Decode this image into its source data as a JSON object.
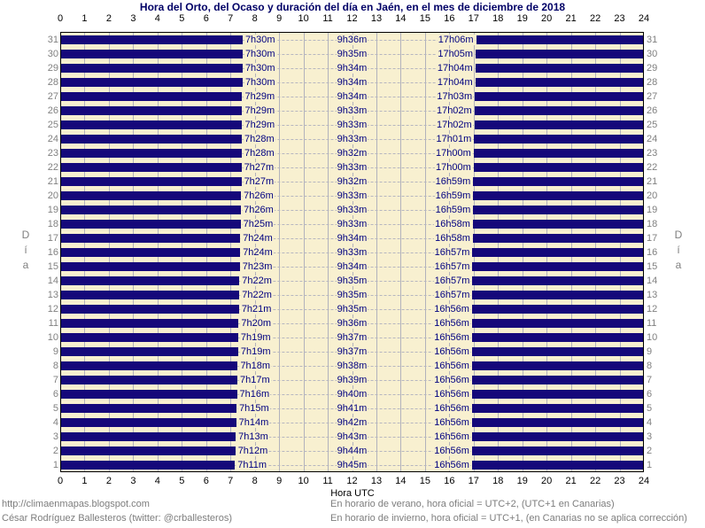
{
  "title": "Hora del Orto, del Ocaso y duración del día en Jaén, en el mes de diciembre de 2018",
  "chart_data": {
    "type": "bar",
    "title": "Hora del Orto, del Ocaso y duración del día en Jaén, en el mes de diciembre de 2018",
    "xlabel": "Hora UTC",
    "ylabel": "Día",
    "x_min": 0,
    "x_max": 24,
    "x_tick_step": 1,
    "grid": "vertical solid per hour, horizontal dashed per day",
    "bar_meaning": "dark bars = night (00:00 to sunrise, sunset to 24:00); labels per day: sunrise (orto), day length (duración), sunset (ocaso)",
    "days": [
      {
        "day": 31,
        "orto": "7h30m",
        "duracion": "9h36m",
        "ocaso": "17h06m"
      },
      {
        "day": 30,
        "orto": "7h30m",
        "duracion": "9h35m",
        "ocaso": "17h05m"
      },
      {
        "day": 29,
        "orto": "7h30m",
        "duracion": "9h34m",
        "ocaso": "17h04m"
      },
      {
        "day": 28,
        "orto": "7h30m",
        "duracion": "9h34m",
        "ocaso": "17h04m"
      },
      {
        "day": 27,
        "orto": "7h29m",
        "duracion": "9h34m",
        "ocaso": "17h03m"
      },
      {
        "day": 26,
        "orto": "7h29m",
        "duracion": "9h33m",
        "ocaso": "17h02m"
      },
      {
        "day": 25,
        "orto": "7h29m",
        "duracion": "9h33m",
        "ocaso": "17h02m"
      },
      {
        "day": 24,
        "orto": "7h28m",
        "duracion": "9h33m",
        "ocaso": "17h01m"
      },
      {
        "day": 23,
        "orto": "7h28m",
        "duracion": "9h32m",
        "ocaso": "17h00m"
      },
      {
        "day": 22,
        "orto": "7h27m",
        "duracion": "9h33m",
        "ocaso": "17h00m"
      },
      {
        "day": 21,
        "orto": "7h27m",
        "duracion": "9h32m",
        "ocaso": "16h59m"
      },
      {
        "day": 20,
        "orto": "7h26m",
        "duracion": "9h33m",
        "ocaso": "16h59m"
      },
      {
        "day": 19,
        "orto": "7h26m",
        "duracion": "9h33m",
        "ocaso": "16h59m"
      },
      {
        "day": 18,
        "orto": "7h25m",
        "duracion": "9h33m",
        "ocaso": "16h58m"
      },
      {
        "day": 17,
        "orto": "7h24m",
        "duracion": "9h34m",
        "ocaso": "16h58m"
      },
      {
        "day": 16,
        "orto": "7h24m",
        "duracion": "9h33m",
        "ocaso": "16h57m"
      },
      {
        "day": 15,
        "orto": "7h23m",
        "duracion": "9h34m",
        "ocaso": "16h57m"
      },
      {
        "day": 14,
        "orto": "7h22m",
        "duracion": "9h35m",
        "ocaso": "16h57m"
      },
      {
        "day": 13,
        "orto": "7h22m",
        "duracion": "9h35m",
        "ocaso": "16h57m"
      },
      {
        "day": 12,
        "orto": "7h21m",
        "duracion": "9h35m",
        "ocaso": "16h56m"
      },
      {
        "day": 11,
        "orto": "7h20m",
        "duracion": "9h36m",
        "ocaso": "16h56m"
      },
      {
        "day": 10,
        "orto": "7h19m",
        "duracion": "9h37m",
        "ocaso": "16h56m"
      },
      {
        "day": 9,
        "orto": "7h19m",
        "duracion": "9h37m",
        "ocaso": "16h56m"
      },
      {
        "day": 8,
        "orto": "7h18m",
        "duracion": "9h38m",
        "ocaso": "16h56m"
      },
      {
        "day": 7,
        "orto": "7h17m",
        "duracion": "9h39m",
        "ocaso": "16h56m"
      },
      {
        "day": 6,
        "orto": "7h16m",
        "duracion": "9h40m",
        "ocaso": "16h56m"
      },
      {
        "day": 5,
        "orto": "7h15m",
        "duracion": "9h41m",
        "ocaso": "16h56m"
      },
      {
        "day": 4,
        "orto": "7h14m",
        "duracion": "9h42m",
        "ocaso": "16h56m"
      },
      {
        "day": 3,
        "orto": "7h13m",
        "duracion": "9h43m",
        "ocaso": "16h56m"
      },
      {
        "day": 2,
        "orto": "7h12m",
        "duracion": "9h44m",
        "ocaso": "16h56m"
      },
      {
        "day": 1,
        "orto": "7h11m",
        "duracion": "9h45m",
        "ocaso": "16h56m"
      }
    ]
  },
  "footer": {
    "url": "http://climaenmapas.blogspot.com",
    "author": "César Rodríguez Ballesteros (twitter: @crballesteros)",
    "note_summer": "En horario de verano, hora oficial = UTC+2, (UTC+1 en Canarias)",
    "note_winter": "En horario de invierno, hora oficial = UTC+1, (en Canarias no se aplica corrección)"
  },
  "colors": {
    "night_bar": "#15087a",
    "day_background": "#f8f0d0",
    "gridline": "#b2b2bc",
    "title_text": "#000066",
    "time_label_text": "#000080",
    "axis_text": "#000000",
    "day_number_text": "#808080",
    "footer_text": "#7d7d7d",
    "page_background": "#ffffff"
  }
}
